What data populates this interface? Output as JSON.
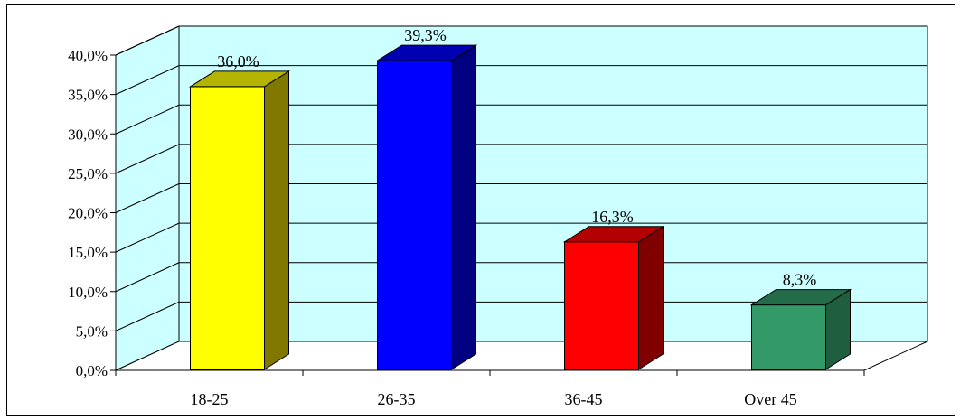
{
  "chart_data": {
    "type": "bar",
    "style": "3d-column",
    "categories": [
      "18-25",
      "26-35",
      "36-45",
      "Over 45"
    ],
    "values": [
      36.0,
      39.3,
      16.3,
      8.3
    ],
    "data_labels": [
      "36,0%",
      "39,3%",
      "16,3%",
      "8,3%"
    ],
    "y_tick_labels": [
      "0,0%",
      "5,0%",
      "10,0%",
      "15,0%",
      "20,0%",
      "25,0%",
      "30,0%",
      "35,0%",
      "40,0%"
    ],
    "ylim": [
      0,
      40
    ],
    "y_step": 5,
    "title": "",
    "xlabel": "",
    "ylabel": "",
    "grid": true,
    "legend": "none",
    "colors": {
      "bars": [
        "#ffff00",
        "#0000ff",
        "#ff0000",
        "#339966"
      ],
      "bar_sides": [
        "#807800",
        "#000080",
        "#800000",
        "#1f5f40"
      ],
      "bar_tops": [
        "#b3b300",
        "#0000b3",
        "#b30000",
        "#246b48"
      ],
      "wall": "#ccffff",
      "floor": "#ffffff",
      "grid": "#000000",
      "frame": "#000000"
    }
  }
}
